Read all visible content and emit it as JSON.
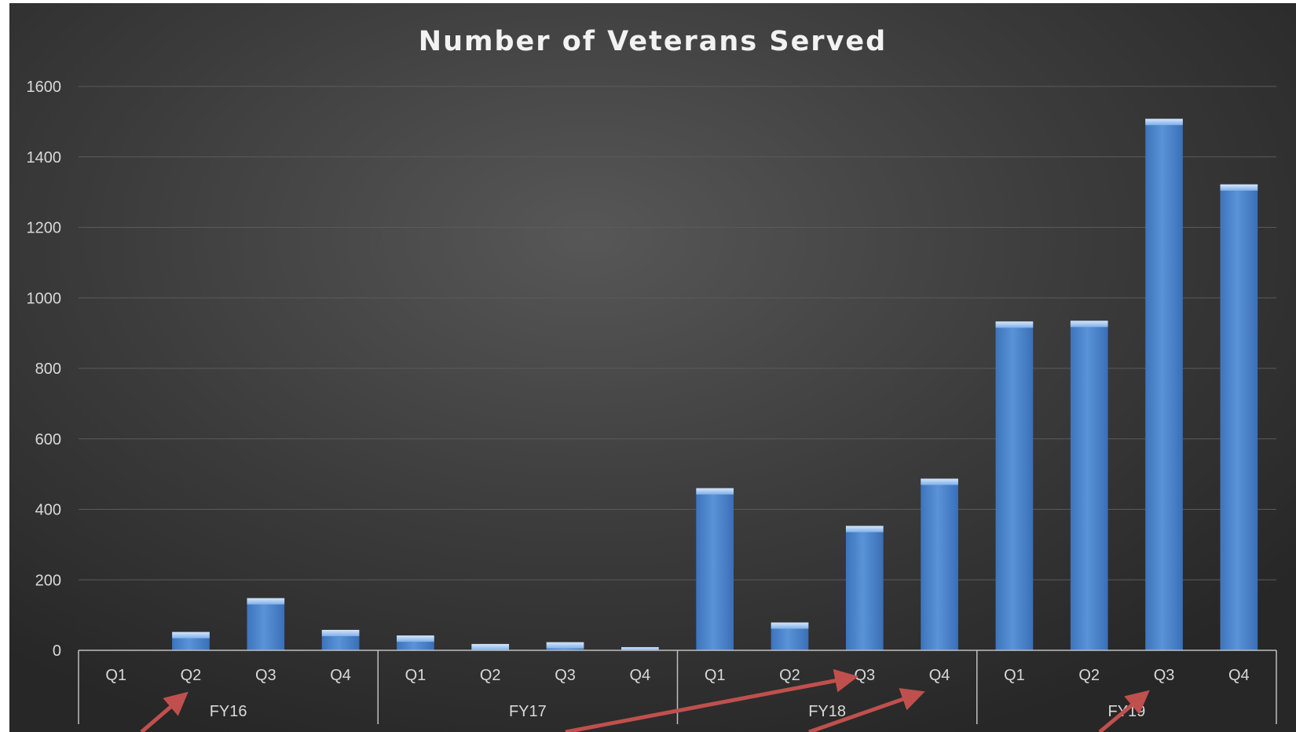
{
  "chart_data": {
    "type": "bar",
    "title": "Number of Veterans Served",
    "xlabel": "",
    "ylabel": "",
    "ylim": [
      0,
      1600
    ],
    "yticks": [
      0,
      200,
      400,
      600,
      800,
      1000,
      1200,
      1400,
      1600
    ],
    "grid": true,
    "legend": "none",
    "groups": [
      {
        "label": "FY16",
        "categories": [
          "Q1",
          "Q2",
          "Q3",
          "Q4"
        ],
        "values": [
          0,
          52,
          148,
          58
        ]
      },
      {
        "label": "FY17",
        "categories": [
          "Q1",
          "Q2",
          "Q3",
          "Q4"
        ],
        "values": [
          42,
          18,
          23,
          9
        ]
      },
      {
        "label": "FY18",
        "categories": [
          "Q1",
          "Q2",
          "Q3",
          "Q4"
        ],
        "values": [
          460,
          79,
          353,
          487
        ]
      },
      {
        "label": "FY19",
        "categories": [
          "Q1",
          "Q2",
          "Q3",
          "Q4"
        ],
        "values": [
          933,
          935,
          1508,
          1322
        ]
      }
    ]
  },
  "colors": {
    "bar": "#4a83cc",
    "bar_top": "#a9c9ef",
    "arrow": "#c0504d"
  }
}
